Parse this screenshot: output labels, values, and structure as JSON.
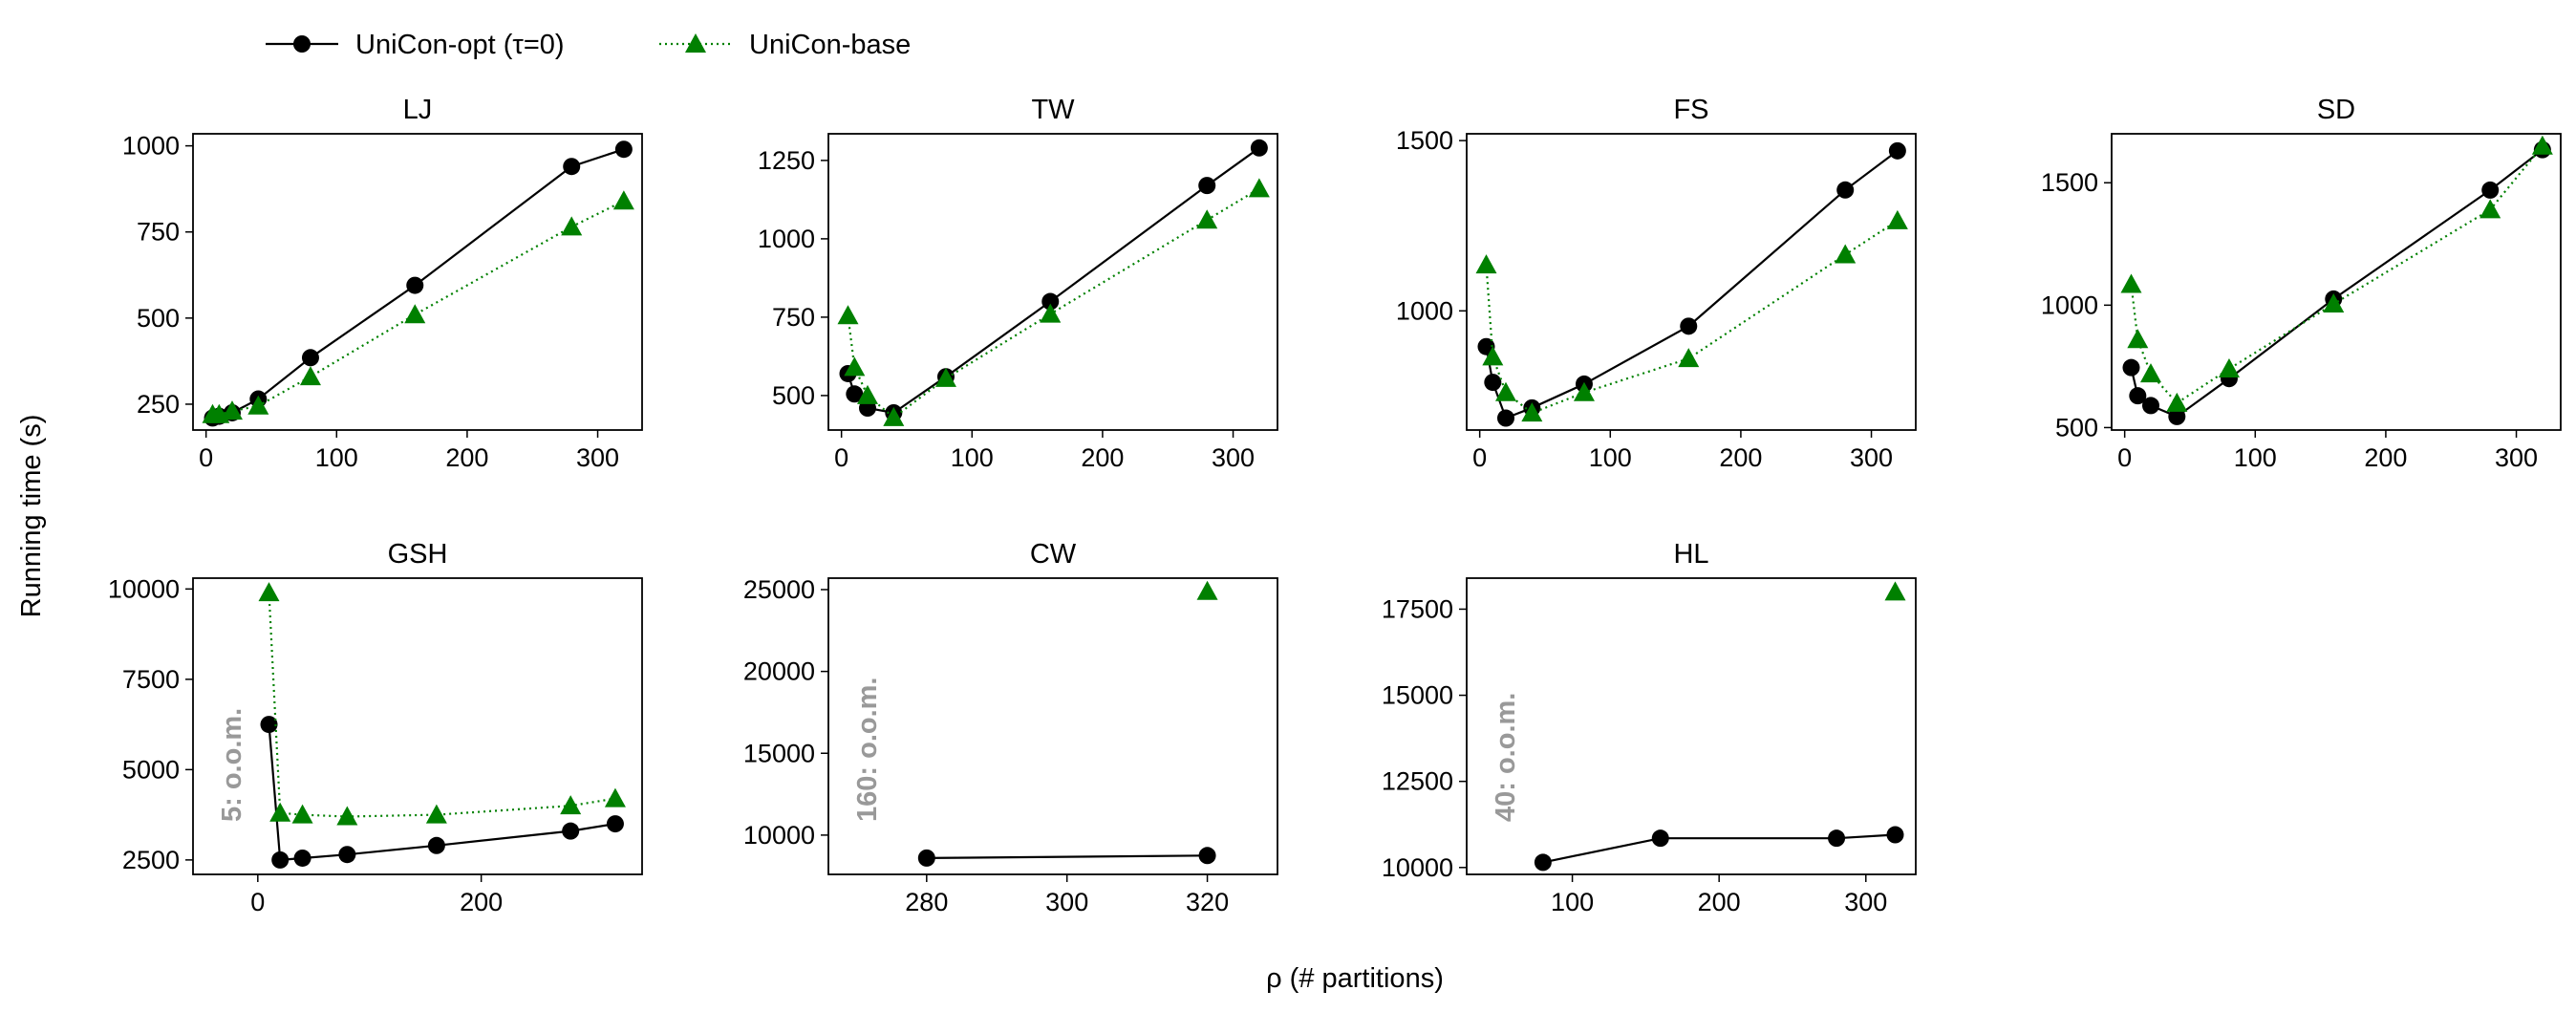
{
  "figure": {
    "ylabel": "Running time (s)",
    "xlabel": "ρ (# partitions)",
    "legend": {
      "placement": "top-left",
      "entries": [
        {
          "label": "UniCon-opt (τ=0)",
          "color": "#000000",
          "marker": "circle",
          "linestyle": "solid"
        },
        {
          "label": "UniCon-base",
          "color": "#008000",
          "marker": "triangle",
          "linestyle": "dotted"
        }
      ]
    }
  },
  "chart_data": [
    {
      "type": "line",
      "title": "LJ",
      "xlim": [
        -10,
        334
      ],
      "ylim": [
        175,
        1035
      ],
      "xticks": [
        0,
        100,
        200,
        300
      ],
      "yticks": [
        250,
        500,
        750,
        1000
      ],
      "series": [
        {
          "name": "UniCon-opt (τ=0)",
          "x": [
            5,
            10,
            20,
            40,
            80,
            160,
            280,
            320
          ],
          "y": [
            210,
            215,
            225,
            265,
            385,
            595,
            940,
            990
          ]
        },
        {
          "name": "UniCon-base",
          "x": [
            5,
            10,
            20,
            40,
            80,
            160,
            280,
            320
          ],
          "y": [
            220,
            220,
            230,
            245,
            330,
            510,
            765,
            840
          ]
        }
      ],
      "annotation": ""
    },
    {
      "type": "line",
      "title": "TW",
      "xlim": [
        -10,
        334
      ],
      "ylim": [
        390,
        1335
      ],
      "xticks": [
        0,
        100,
        200,
        300
      ],
      "yticks": [
        500,
        750,
        1000,
        1250
      ],
      "series": [
        {
          "name": "UniCon-opt (τ=0)",
          "x": [
            5,
            10,
            20,
            40,
            80,
            160,
            280,
            320
          ],
          "y": [
            570,
            505,
            460,
            445,
            560,
            800,
            1170,
            1290
          ]
        },
        {
          "name": "UniCon-base",
          "x": [
            5,
            10,
            20,
            40,
            80,
            160,
            280,
            320
          ],
          "y": [
            755,
            590,
            500,
            430,
            555,
            760,
            1060,
            1160
          ]
        }
      ],
      "annotation": ""
    },
    {
      "type": "line",
      "title": "FS",
      "xlim": [
        -10,
        334
      ],
      "ylim": [
        650,
        1520
      ],
      "xticks": [
        0,
        100,
        200,
        300
      ],
      "yticks": [
        1000,
        1500
      ],
      "series": [
        {
          "name": "UniCon-opt (τ=0)",
          "x": [
            5,
            10,
            20,
            40,
            80,
            160,
            280,
            320
          ],
          "y": [
            895,
            790,
            685,
            715,
            785,
            955,
            1355,
            1470
          ]
        },
        {
          "name": "UniCon-base",
          "x": [
            5,
            10,
            20,
            40,
            80,
            160,
            280,
            320
          ],
          "y": [
            1135,
            865,
            760,
            700,
            760,
            860,
            1165,
            1265
          ]
        }
      ],
      "annotation": ""
    },
    {
      "type": "line",
      "title": "SD",
      "xlim": [
        -10,
        334
      ],
      "ylim": [
        490,
        1700
      ],
      "xticks": [
        0,
        100,
        200,
        300
      ],
      "yticks": [
        500,
        1000,
        1500
      ],
      "series": [
        {
          "name": "UniCon-opt (τ=0)",
          "x": [
            5,
            10,
            20,
            40,
            80,
            160,
            280,
            320
          ],
          "y": [
            745,
            630,
            590,
            545,
            700,
            1025,
            1470,
            1635
          ]
        },
        {
          "name": "UniCon-base",
          "x": [
            5,
            10,
            20,
            40,
            80,
            160,
            280,
            320
          ],
          "y": [
            1085,
            860,
            720,
            600,
            740,
            1005,
            1390,
            1650
          ]
        }
      ],
      "annotation": ""
    },
    {
      "type": "line",
      "title": "GSH",
      "xlim": [
        -58,
        344
      ],
      "ylim": [
        2100,
        10300
      ],
      "xticks": [
        0,
        200
      ],
      "yticks": [
        2500,
        5000,
        7500,
        10000
      ],
      "series": [
        {
          "name": "UniCon-opt (τ=0)",
          "x": [
            10,
            20,
            40,
            80,
            160,
            280,
            320
          ],
          "y": [
            6250,
            2500,
            2550,
            2650,
            2900,
            3300,
            3500
          ]
        },
        {
          "name": "UniCon-base",
          "x": [
            10,
            20,
            40,
            80,
            160,
            280,
            320
          ],
          "y": [
            9900,
            3800,
            3750,
            3700,
            3750,
            4000,
            4200
          ]
        }
      ],
      "annotation": "5: o.o.m."
    },
    {
      "type": "line",
      "title": "CW",
      "xlim": [
        266,
        330
      ],
      "ylim": [
        7600,
        25700
      ],
      "xticks": [
        280,
        300,
        320
      ],
      "yticks": [
        10000,
        15000,
        20000,
        25000
      ],
      "series": [
        {
          "name": "UniCon-opt (τ=0)",
          "x": [
            280,
            320
          ],
          "y": [
            8600,
            8750
          ]
        },
        {
          "name": "UniCon-base",
          "x": [
            320
          ],
          "y": [
            24900
          ]
        }
      ],
      "annotation": "160: o.o.m."
    },
    {
      "type": "line",
      "title": "HL",
      "xlim": [
        28,
        334
      ],
      "ylim": [
        9800,
        18400
      ],
      "xticks": [
        100,
        200,
        300
      ],
      "yticks": [
        10000,
        12500,
        15000,
        17500
      ],
      "series": [
        {
          "name": "UniCon-opt (τ=0)",
          "x": [
            80,
            160,
            280,
            320
          ],
          "y": [
            10150,
            10850,
            10850,
            10950
          ]
        },
        {
          "name": "UniCon-base",
          "x": [
            320
          ],
          "y": [
            18000
          ]
        }
      ],
      "annotation": "40: o.o.m."
    }
  ]
}
